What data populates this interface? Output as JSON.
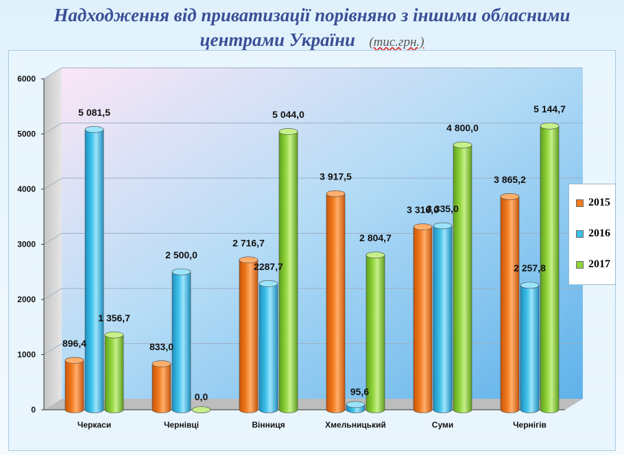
{
  "title_line1": "Надходження від приватизації порівняно з  іншими обласними",
  "title_line2": "центрами України",
  "title_unit": "(тис.грн.)",
  "colors": {
    "2015": "#f07a1e",
    "2016": "#3ec0e8",
    "2017": "#8fd43a"
  },
  "chart_data": {
    "type": "bar",
    "categories": [
      "Черкаси",
      "Чернівці",
      "Вінниця",
      "Хмельницький",
      "Суми",
      "Чернігів"
    ],
    "series": [
      {
        "name": "2015",
        "values": [
          896.4,
          833.0,
          2716.7,
          3917.5,
          3316.0,
          3865.2
        ],
        "labels": [
          "896,4",
          "833,0",
          "2 716,7",
          "3 917,5",
          "3 316,0",
          "3 865,2"
        ]
      },
      {
        "name": "2016",
        "values": [
          5081.5,
          2500.0,
          2287.7,
          95.6,
          3335.0,
          2257.8
        ],
        "labels": [
          "5 081,5",
          "2 500,0",
          "2287,7",
          "95,6",
          "3 335,0",
          "2 257,8"
        ]
      },
      {
        "name": "2017",
        "values": [
          1356.7,
          0.0,
          5044.0,
          2804.7,
          4800.0,
          5144.7
        ],
        "labels": [
          "1 356,7",
          "0,0",
          "5 044,0",
          "2 804,7",
          "4 800,0",
          "5 144,7"
        ]
      }
    ],
    "yticks": [
      "0",
      "1000",
      "2000",
      "3000",
      "4000",
      "5000",
      "6000"
    ],
    "ylim": [
      0,
      6000
    ],
    "grid": true,
    "legend_position": "right"
  }
}
